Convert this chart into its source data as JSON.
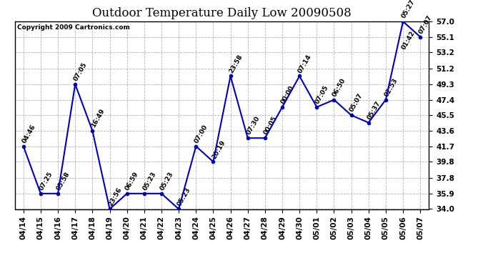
{
  "title": "Outdoor Temperature Daily Low 20090508",
  "copyright": "Copyright 2009 Cartronics.com",
  "dates": [
    "04/14",
    "04/15",
    "04/16",
    "04/17",
    "04/18",
    "04/19",
    "04/20",
    "04/21",
    "04/22",
    "04/23",
    "04/24",
    "04/25",
    "04/26",
    "04/27",
    "04/28",
    "04/29",
    "04/30",
    "05/01",
    "05/02",
    "05/03",
    "05/04",
    "05/05",
    "05/06",
    "05/07"
  ],
  "values": [
    41.7,
    35.9,
    35.9,
    49.3,
    43.6,
    34.0,
    35.9,
    35.9,
    35.9,
    34.0,
    41.7,
    39.8,
    50.3,
    42.7,
    42.7,
    46.5,
    50.3,
    46.5,
    47.4,
    45.5,
    44.6,
    47.4,
    57.0,
    55.1
  ],
  "time_labels": [
    "04:46",
    "07:25",
    "05:58",
    "07:05",
    "16:49",
    "23:56",
    "06:59",
    "05:23",
    "05:23",
    "05:23",
    "07:00",
    "20:19",
    "23:58",
    "07:30",
    "00:05",
    "00:00",
    "07:14",
    "07:05",
    "06:50",
    "05:07",
    "05:37",
    "02:53",
    "05:27",
    "07:07"
  ],
  "extra_label_index": 22,
  "extra_label_value": 53.2,
  "extra_label_text": "01:42",
  "ylim": [
    34.0,
    57.0
  ],
  "yticks": [
    34.0,
    35.9,
    37.8,
    39.8,
    41.7,
    43.6,
    45.5,
    47.4,
    49.3,
    51.2,
    53.2,
    55.1,
    57.0
  ],
  "line_color": "#0000bb",
  "marker_color": "#0000bb",
  "bg_color": "#ffffff",
  "grid_color": "#aaaaaa",
  "title_fontsize": 12,
  "label_fontsize": 6.5,
  "tick_fontsize": 7.5,
  "copyright_fontsize": 6.5
}
